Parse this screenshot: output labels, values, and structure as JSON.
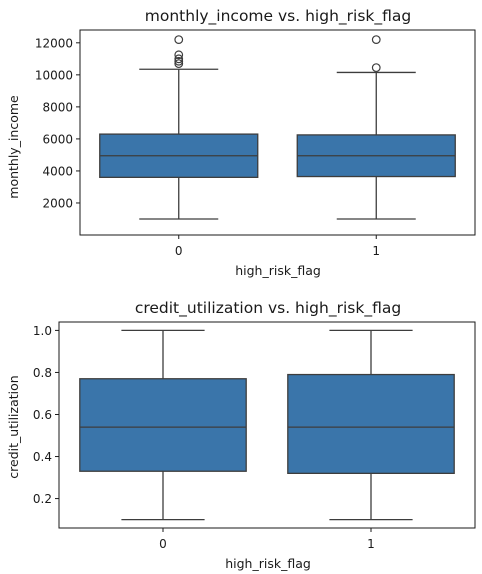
{
  "chart_data": [
    {
      "type": "box",
      "title": "monthly_income vs. high_risk_flag",
      "xlabel": "high_risk_flag",
      "ylabel": "monthly_income",
      "categories": [
        "0",
        "1"
      ],
      "ylim": [
        0,
        12800
      ],
      "yticks": [
        2000,
        4000,
        6000,
        8000,
        10000,
        12000
      ],
      "ytick_labels": [
        "2000",
        "4000",
        "6000",
        "8000",
        "10000",
        "12000"
      ],
      "boxes": [
        {
          "category": "0",
          "whisker_low": 1000,
          "q1": 3600,
          "median": 4950,
          "q3": 6300,
          "whisker_high": 10350,
          "outliers": [
            10700,
            10850,
            11000,
            11250,
            12200
          ]
        },
        {
          "category": "1",
          "whisker_low": 1000,
          "q1": 3650,
          "median": 4950,
          "q3": 6250,
          "whisker_high": 10150,
          "outliers": [
            10450,
            12200
          ]
        }
      ],
      "box_color": "#3a75aa"
    },
    {
      "type": "box",
      "title": "credit_utilization vs. high_risk_flag",
      "xlabel": "high_risk_flag",
      "ylabel": "credit_utilization",
      "categories": [
        "0",
        "1"
      ],
      "ylim": [
        0.06,
        1.04
      ],
      "yticks": [
        0.2,
        0.4,
        0.6,
        0.8,
        1.0
      ],
      "ytick_labels": [
        "0.2",
        "0.4",
        "0.6",
        "0.8",
        "1.0"
      ],
      "boxes": [
        {
          "category": "0",
          "whisker_low": 0.1,
          "q1": 0.33,
          "median": 0.54,
          "q3": 0.77,
          "whisker_high": 1.0,
          "outliers": []
        },
        {
          "category": "1",
          "whisker_low": 0.1,
          "q1": 0.32,
          "median": 0.54,
          "q3": 0.79,
          "whisker_high": 1.0,
          "outliers": []
        }
      ],
      "box_color": "#3a75aa"
    }
  ]
}
